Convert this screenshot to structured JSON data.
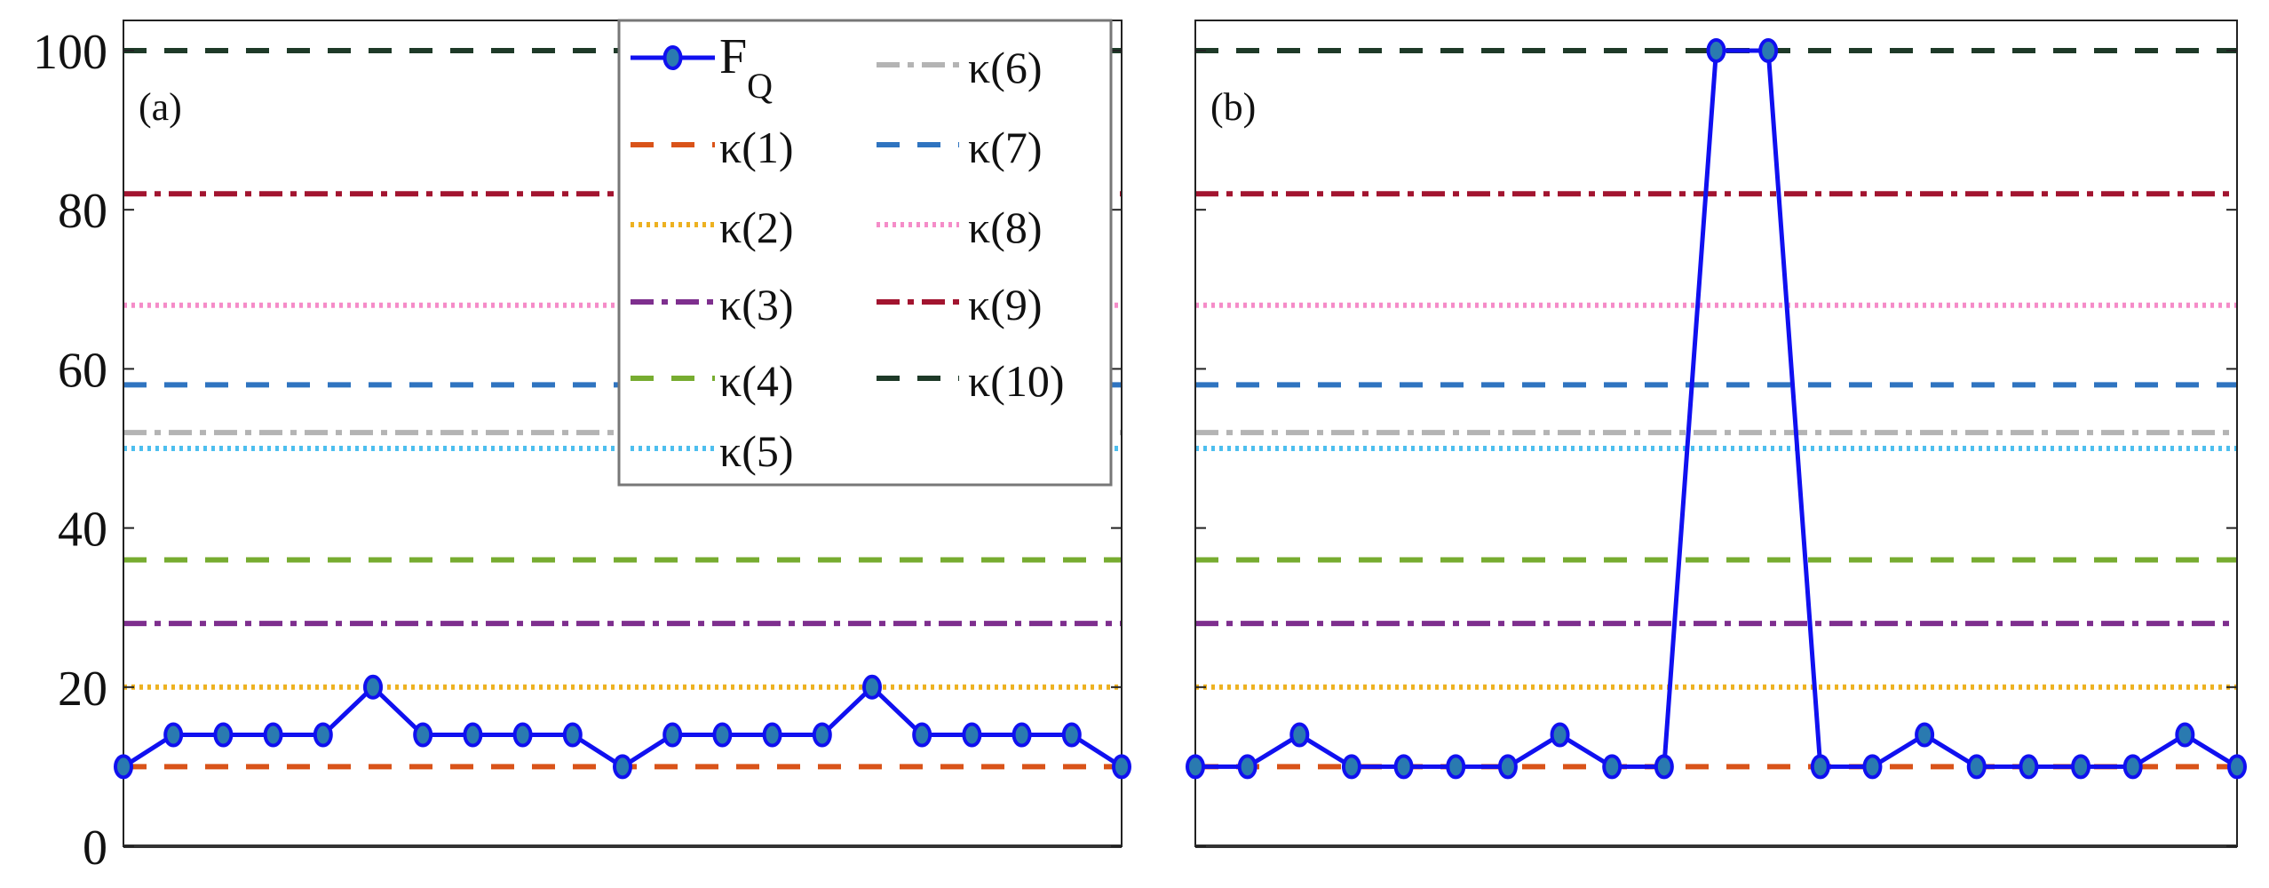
{
  "chart_data": [
    {
      "type": "line",
      "panel_label": "(a)",
      "x": [
        1,
        2,
        3,
        4,
        5,
        6,
        7,
        8,
        9,
        10,
        11,
        12,
        13,
        14,
        15,
        16,
        17,
        18,
        19,
        20,
        21
      ],
      "xlim": [
        1,
        21
      ],
      "ylim": [
        0,
        100
      ],
      "yticks": [
        0,
        20,
        40,
        60,
        80,
        100
      ],
      "grid": false,
      "series": [
        {
          "name": "F_Q",
          "values": [
            10,
            14,
            14,
            14,
            14,
            20,
            14,
            14,
            14,
            14,
            10,
            14,
            14,
            14,
            14,
            20,
            14,
            14,
            14,
            14,
            10
          ],
          "color": "#1010F0",
          "marker": "circle"
        }
      ]
    },
    {
      "type": "line",
      "panel_label": "(b)",
      "x": [
        1,
        2,
        3,
        4,
        5,
        6,
        7,
        8,
        9,
        10,
        11,
        12,
        13,
        14,
        15,
        16,
        17,
        18,
        19,
        20,
        21
      ],
      "xlim": [
        1,
        21
      ],
      "ylim": [
        0,
        100
      ],
      "yticks": [
        0,
        20,
        40,
        60,
        80,
        100
      ],
      "grid": false,
      "series": [
        {
          "name": "F_Q",
          "values": [
            10,
            10,
            14,
            10,
            10,
            10,
            10,
            14,
            10,
            10,
            100,
            100,
            10,
            10,
            14,
            10,
            10,
            10,
            10,
            14,
            10
          ],
          "color": "#1010F0",
          "marker": "circle"
        }
      ]
    }
  ],
  "reference_lines": [
    {
      "name": "κ(1)",
      "value": 10,
      "color": "#D95319",
      "style": "dashed"
    },
    {
      "name": "κ(2)",
      "value": 20,
      "color": "#EDB120",
      "style": "dotted"
    },
    {
      "name": "κ(3)",
      "value": 28,
      "color": "#7E2F8E",
      "style": "dashdot"
    },
    {
      "name": "κ(4)",
      "value": 36,
      "color": "#77AC30",
      "style": "dashed"
    },
    {
      "name": "κ(5)",
      "value": 50,
      "color": "#4DBEEE",
      "style": "dotted"
    },
    {
      "name": "κ(6)",
      "value": 52,
      "color": "#B4B4B4",
      "style": "dashdot"
    },
    {
      "name": "κ(7)",
      "value": 58,
      "color": "#2F74C0",
      "style": "dashed"
    },
    {
      "name": "κ(8)",
      "value": 68,
      "color": "#F58CC8",
      "style": "dotted"
    },
    {
      "name": "κ(9)",
      "value": 82,
      "color": "#A2142F",
      "style": "dashdot"
    },
    {
      "name": "κ(10)",
      "value": 100,
      "color": "#1E3A28",
      "style": "dashed"
    }
  ],
  "legend": {
    "placement": "top-right of panel (a)",
    "fq_label": {
      "main": "F",
      "sub": "Q"
    }
  }
}
